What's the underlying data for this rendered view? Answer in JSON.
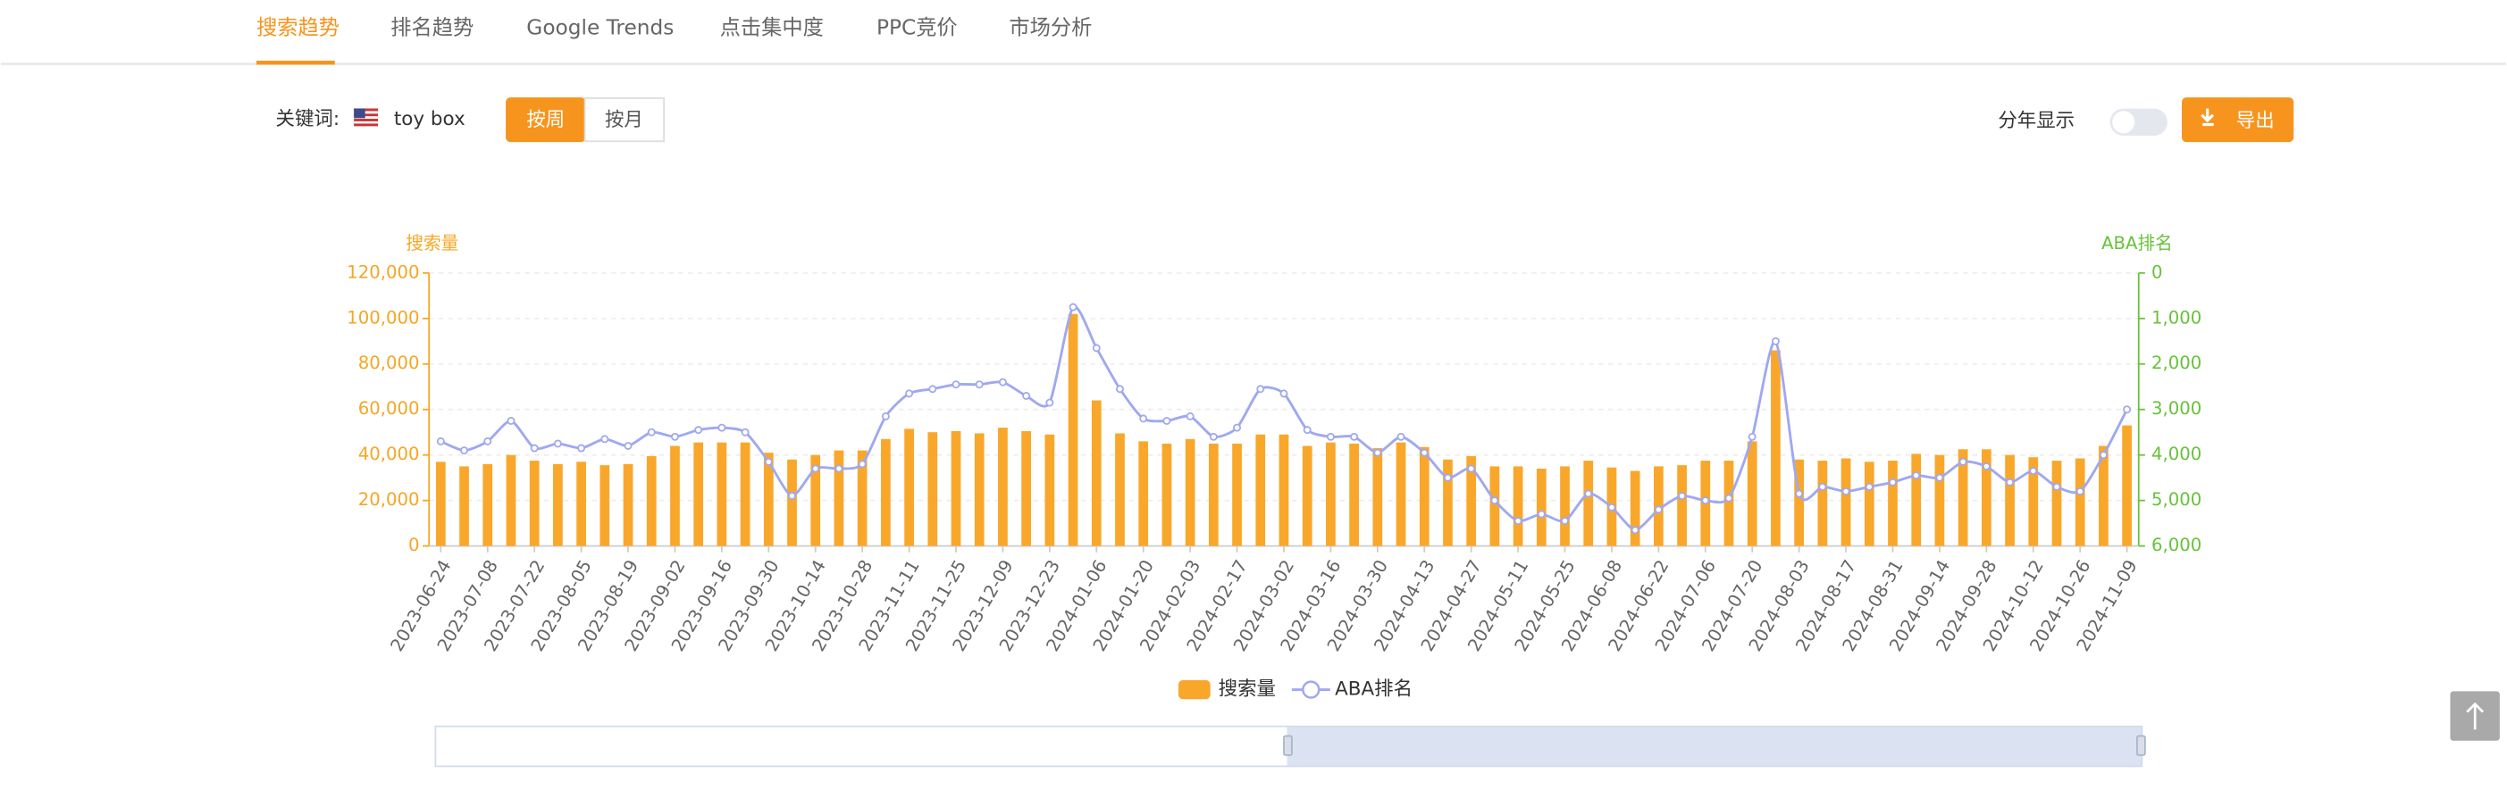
{
  "tabs": [
    "搜索趋势",
    "排名趋势",
    "Google Trends",
    "点击集中度",
    "PPC竞价",
    "市场分析"
  ],
  "keyword_label": "关键词:",
  "keyword": "toy box",
  "period_buttons": [
    "按周",
    "按月"
  ],
  "year_toggle_label": "分年显示",
  "export_button": "导出",
  "chart_data": {
    "type": "bar_line",
    "y_label": "搜索量",
    "y2_label": "ABA排名",
    "categories": [
      "2023-06-24",
      null,
      "2023-07-08",
      null,
      "2023-07-22",
      null,
      "2023-08-05",
      null,
      "2023-08-19",
      null,
      "2023-09-02",
      null,
      "2023-09-16",
      null,
      "2023-09-30",
      null,
      "2023-10-14",
      null,
      "2023-10-28",
      null,
      "2023-11-11",
      null,
      "2023-11-25",
      null,
      "2023-12-09",
      null,
      "2023-12-23",
      null,
      "2024-01-06",
      null,
      "2024-01-20",
      null,
      "2024-02-03",
      null,
      "2024-02-17",
      null,
      "2024-03-02",
      null,
      "2024-03-16",
      null,
      "2024-03-30",
      null,
      "2024-04-13",
      null,
      "2024-04-27",
      null,
      "2024-05-11",
      null,
      "2024-05-25",
      null,
      "2024-06-08",
      null,
      "2024-06-22",
      null,
      "2024-07-06",
      null,
      "2024-07-20",
      null,
      "2024-08-03",
      null,
      "2024-08-17",
      null,
      "2024-08-31",
      null,
      "2024-09-14",
      null,
      "2024-09-28",
      null,
      "2024-10-12",
      null,
      "2024-10-26",
      null,
      "2024-11-09"
    ],
    "series": [
      {
        "name": "搜索量",
        "type": "bar",
        "color": "#f9a72b",
        "values": [
          37000,
          35000,
          36000,
          40000,
          37500,
          36000,
          37000,
          35500,
          36000,
          39500,
          44000,
          45500,
          45500,
          45500,
          41000,
          38000,
          40000,
          42000,
          42000,
          47000,
          51500,
          50000,
          50500,
          49500,
          52000,
          50500,
          49000,
          102000,
          64000,
          49500,
          46000,
          45000,
          47000,
          45000,
          45000,
          49000,
          49000,
          44000,
          45500,
          45000,
          43000,
          45500,
          43500,
          38000,
          39500,
          35000,
          35000,
          34000,
          35000,
          37500,
          34500,
          33000,
          35000,
          35500,
          37500,
          37500,
          46000,
          86000,
          38000,
          37500,
          38500,
          37000,
          37500,
          40500,
          40000,
          42500,
          42500,
          40000,
          39000,
          37500,
          38500,
          44000,
          53000
        ]
      },
      {
        "name": "ABA排名",
        "type": "line",
        "axis": "y2",
        "color": "#9fa8f0",
        "values": [
          3700,
          3900,
          3700,
          3250,
          3850,
          3750,
          3850,
          3650,
          3800,
          3500,
          3600,
          3450,
          3400,
          3500,
          4150,
          4900,
          4300,
          4300,
          4200,
          3150,
          2650,
          2550,
          2450,
          2450,
          2400,
          2700,
          2850,
          750,
          1650,
          2550,
          3200,
          3250,
          3150,
          3600,
          3400,
          2550,
          2650,
          3450,
          3600,
          3600,
          3950,
          3600,
          3950,
          4500,
          4300,
          5000,
          5450,
          5300,
          5450,
          4850,
          5150,
          5650,
          5200,
          4900,
          5000,
          4950,
          3600,
          1500,
          4850,
          4700,
          4800,
          4700,
          4600,
          4450,
          4500,
          4150,
          4250,
          4600,
          4350,
          4700,
          4800,
          4000,
          3000
        ]
      }
    ],
    "ylim": [
      0,
      120000
    ],
    "yticks": [
      0,
      {
        "value": 20000,
        "label": "20,000"
      },
      {
        "value": 40000,
        "label": "40,000"
      },
      {
        "value": 60000,
        "label": "60,000"
      },
      {
        "value": 80000,
        "label": "80,000"
      },
      {
        "value": 100000,
        "label": "100,000"
      },
      {
        "value": 120000,
        "label": "120,000"
      }
    ],
    "y2lim": [
      0,
      6000
    ],
    "y2_inverse": true,
    "y2ticks": [
      0,
      {
        "value": 1000,
        "label": "1,000"
      },
      {
        "value": 2000,
        "label": "2,000"
      },
      {
        "value": 3000,
        "label": "3,000"
      },
      {
        "value": 4000,
        "label": "4,000"
      },
      {
        "value": 5000,
        "label": "5,000"
      },
      {
        "value": 6000,
        "label": "6,000"
      }
    ],
    "grid": true,
    "legend": "bottom"
  }
}
